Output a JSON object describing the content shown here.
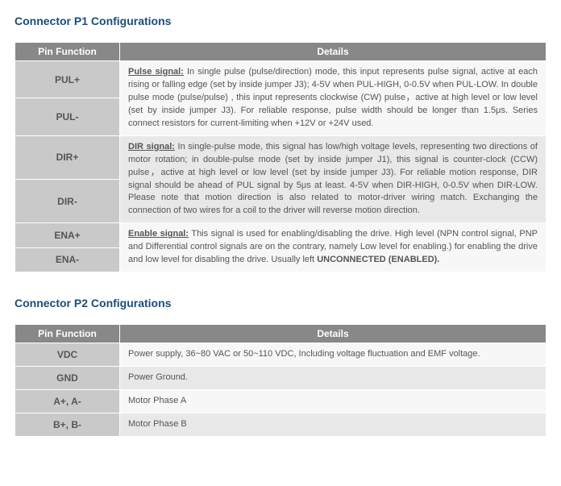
{
  "p1": {
    "heading": "Connector P1 Configurations",
    "headers": {
      "pin": "Pin Function",
      "details": "Details"
    },
    "rows": {
      "pul_plus": "PUL+",
      "pul_minus": "PUL-",
      "dir_plus": "DIR+",
      "dir_minus": "DIR-",
      "ena_plus": "ENA+",
      "ena_minus": "ENA-"
    },
    "pulse": {
      "label": "Pulse signal:",
      "text": " In single pulse (pulse/direction) mode, this input represents pulse signal, active at each rising or falling edge (set by inside jumper J3); 4-5V when PUL-HIGH, 0-0.5V when PUL-LOW. In double pulse mode (pulse/pulse) , this input represents clockwise (CW) pulse，active at high level or low level (set by inside jumper J3). For reliable response, pulse width should be longer than 1.5μs. Series connect resistors for current-limiting when +12V or +24V used."
    },
    "dir": {
      "label": "DIR signal:",
      "text": " In single-pulse mode, this signal has low/high voltage levels, representing two directions of motor rotation; in double-pulse mode (set by inside jumper J1), this signal is counter-clock (CCW) pulse，active at high level or low level (set by inside jumper J3). For reliable motion response, DIR signal should be ahead of PUL signal by 5μs at least. 4-5V when DIR-HIGH, 0-0.5V when DIR-LOW. Please note that motion direction is also related to motor-driver wiring match. Exchanging the connection of two wires for a coil to the driver will reverse motion direction."
    },
    "ena": {
      "label": "Enable signal:",
      "text1": " This signal is used for enabling/disabling the drive. High level (NPN control signal, PNP and Differential control signals are on the contrary, namely Low level for enabling.) for enabling the drive and low level for disabling the drive. Usually left ",
      "unconnected": "UNCONNECTED (ENABLED)."
    }
  },
  "p2": {
    "heading": "Connector P2 Configurations",
    "headers": {
      "pin": "Pin Function",
      "details": "Details"
    },
    "rows": [
      {
        "pin": "VDC",
        "details": "Power supply, 36~80 VAC or 50~110 VDC, Including voltage fluctuation and EMF voltage."
      },
      {
        "pin": "GND",
        "details": "Power Ground."
      },
      {
        "pin": "A+, A-",
        "details": "Motor Phase A"
      },
      {
        "pin": "B+, B-",
        "details": "Motor Phase B"
      }
    ]
  },
  "colors": {
    "heading": "#1a4d7a",
    "header_bg": "#888888",
    "pin_bg": "#c9c9c9",
    "row_light": "#f7f7f7",
    "row_dark": "#e8e8e8",
    "text": "#555555"
  }
}
